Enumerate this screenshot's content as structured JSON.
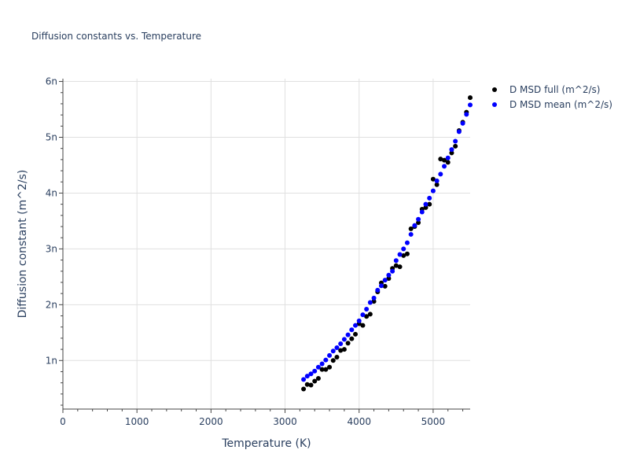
{
  "chart_data": {
    "type": "scatter",
    "title": "Diffusion constants vs. Temperature",
    "xlabel": "Temperature (K)",
    "ylabel": "Diffusion constant (m^2/s)",
    "xlim": [
      0,
      5500
    ],
    "ylim": [
      0.13,
      6.05
    ],
    "grid": true,
    "legend_position": "top-right",
    "x_ticks": [
      0,
      1000,
      2000,
      3000,
      4000,
      5000
    ],
    "x_tick_labels": [
      "0",
      "1000",
      "2000",
      "3000",
      "4000",
      "5000"
    ],
    "y_ticks": [
      1,
      2,
      3,
      4,
      5,
      6
    ],
    "y_tick_labels": [
      "1n",
      "2n",
      "3n",
      "4n",
      "5n",
      "6n"
    ],
    "y_minor_ticks": [
      0.2,
      0.4,
      0.6,
      0.8,
      1.2,
      1.4,
      1.6,
      1.8,
      2.2,
      2.4,
      2.6,
      2.8,
      3.2,
      3.4,
      3.6,
      3.8,
      4.2,
      4.4,
      4.6,
      4.8,
      5.2,
      5.4,
      5.6,
      5.8
    ],
    "x_minor_ticks": [
      200,
      400,
      600,
      800,
      1200,
      1400,
      1600,
      1800,
      2200,
      2400,
      2600,
      2800,
      3200,
      3400,
      3600,
      3800,
      4200,
      4400,
      4600,
      4800,
      5200,
      5400
    ],
    "series": [
      {
        "name": "D MSD full (m^2/s)",
        "color": "#000000",
        "x": [
          3250,
          3300,
          3350,
          3400,
          3450,
          3500,
          3550,
          3600,
          3650,
          3700,
          3750,
          3800,
          3850,
          3900,
          3950,
          4000,
          4050,
          4100,
          4150,
          4200,
          4250,
          4300,
          4350,
          4400,
          4450,
          4500,
          4550,
          4600,
          4650,
          4700,
          4750,
          4800,
          4850,
          4900,
          4950,
          5000,
          5050,
          5100,
          5150,
          5200,
          5250,
          5300,
          5350,
          5400,
          5450,
          5500
        ],
        "y": [
          0.49,
          0.57,
          0.56,
          0.63,
          0.68,
          0.84,
          0.84,
          0.88,
          1.0,
          1.06,
          1.18,
          1.2,
          1.31,
          1.39,
          1.47,
          1.66,
          1.63,
          1.79,
          1.83,
          2.06,
          2.23,
          2.39,
          2.33,
          2.47,
          2.65,
          2.7,
          2.68,
          2.88,
          2.91,
          3.36,
          3.4,
          3.47,
          3.71,
          3.74,
          3.8,
          4.25,
          4.15,
          4.61,
          4.59,
          4.55,
          4.72,
          4.84,
          5.12,
          5.27,
          5.45,
          5.71
        ]
      },
      {
        "name": "D MSD mean (m^2/s)",
        "color": "#0000ff",
        "x": [
          3250,
          3300,
          3350,
          3400,
          3450,
          3500,
          3550,
          3600,
          3650,
          3700,
          3750,
          3800,
          3850,
          3900,
          3950,
          4000,
          4050,
          4100,
          4150,
          4200,
          4250,
          4300,
          4350,
          4400,
          4450,
          4500,
          4550,
          4600,
          4650,
          4700,
          4750,
          4800,
          4850,
          4900,
          4950,
          5000,
          5050,
          5100,
          5150,
          5200,
          5250,
          5300,
          5350,
          5400,
          5450,
          5500
        ],
        "y": [
          0.66,
          0.72,
          0.76,
          0.81,
          0.88,
          0.94,
          1.01,
          1.09,
          1.17,
          1.23,
          1.3,
          1.38,
          1.46,
          1.55,
          1.63,
          1.71,
          1.82,
          1.92,
          2.04,
          2.12,
          2.26,
          2.34,
          2.44,
          2.53,
          2.6,
          2.79,
          2.9,
          3.0,
          3.11,
          3.26,
          3.42,
          3.53,
          3.66,
          3.8,
          3.91,
          4.04,
          4.22,
          4.34,
          4.48,
          4.63,
          4.78,
          4.93,
          5.1,
          5.25,
          5.41,
          5.58
        ]
      }
    ]
  }
}
